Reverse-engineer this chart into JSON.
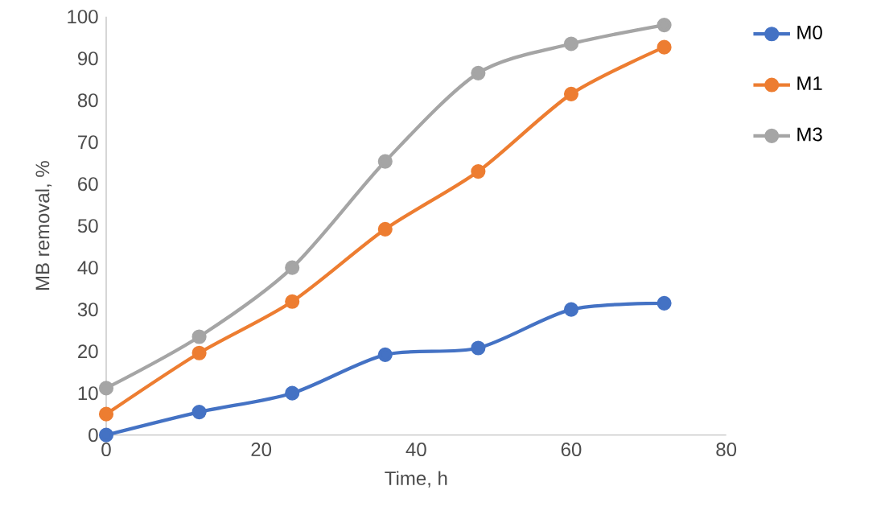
{
  "chart_data": {
    "type": "line",
    "xlabel": "Time, h",
    "ylabel": "MB removal, %",
    "x": [
      0,
      12,
      24,
      36,
      48,
      60,
      72
    ],
    "series": [
      {
        "name": "M0",
        "color": "#4472c4",
        "values": [
          0,
          5.5,
          10,
          19.2,
          20.8,
          30,
          31.5
        ]
      },
      {
        "name": "M1",
        "color": "#ed7d31",
        "values": [
          5,
          19.6,
          31.9,
          49.2,
          63,
          81.5,
          92.7
        ]
      },
      {
        "name": "M3",
        "color": "#a5a5a5",
        "values": [
          11.2,
          23.5,
          40,
          65.4,
          86.5,
          93.5,
          98
        ]
      }
    ],
    "xlim": [
      0,
      80
    ],
    "ylim": [
      0,
      100
    ],
    "xticks": [
      0,
      20,
      40,
      60,
      80
    ],
    "yticks": [
      0,
      10,
      20,
      30,
      40,
      50,
      60,
      70,
      80,
      90,
      100
    ],
    "legend": "right",
    "marker": "circle"
  }
}
